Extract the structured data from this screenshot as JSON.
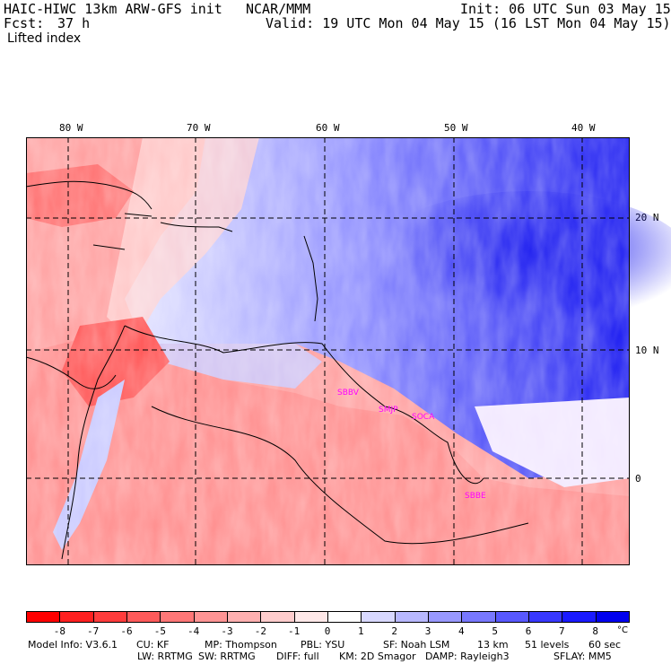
{
  "header": {
    "model": "HAIC-HIWC 13km ARW-GFS init",
    "org": "NCAR/MMM",
    "init": "Init: 06 UTC Sun 03 May 15",
    "fcst_label": "Fcst:",
    "fcst_value": "37 h",
    "valid": "Valid: 19 UTC Mon 04 May 15 (16 LST Mon 04 May 15)",
    "field": "Lifted index"
  },
  "map": {
    "lon_labels": [
      "80 W",
      "70 W",
      "60 W",
      "50 W",
      "40 W"
    ],
    "lat_labels": [
      "20 N",
      "10 N",
      "0"
    ],
    "stations": [
      "SBBV",
      "SMJP",
      "SOCA",
      "SBBE"
    ],
    "colors": {
      "unstable_strong": "#ff0000",
      "unstable_mid": "#ff7777",
      "unstable_weak": "#ffbbbb",
      "neutral": "#ffffff",
      "stable_weak": "#ccccff",
      "stable_mid": "#7777ff",
      "stable_strong": "#0000ee",
      "station_label": "#ff00ff"
    }
  },
  "colorbar": {
    "labels": [
      "-8",
      "-7",
      "-6",
      "-5",
      "-4",
      "-3",
      "-2",
      "-1",
      "0",
      "1",
      "2",
      "3",
      "4",
      "5",
      "6",
      "7",
      "8"
    ],
    "unit": "°C",
    "colors": [
      "#ff0000",
      "#ff2020",
      "#ff3c3c",
      "#ff5a5a",
      "#ff7777",
      "#ff9494",
      "#ffb0b0",
      "#ffcccc",
      "#ffe8e8",
      "#ffffff",
      "#d8d8ff",
      "#b8b8ff",
      "#9898ff",
      "#7878ff",
      "#5858ff",
      "#3838ff",
      "#1a1aff",
      "#0000ee"
    ]
  },
  "footer": {
    "line1": [
      "Model Info: V3.6.1",
      "CU: KF",
      "MP: Thompson",
      "PBL: YSU",
      "SF: Noah LSM",
      "13 km",
      "51 levels",
      "60 sec"
    ],
    "line2": [
      "LW: RRTMG",
      "SW: RRTMG",
      "DIFF: full",
      "KM: 2D Smagor",
      "DAMP: Rayleigh3",
      "SFLAY: MM5"
    ]
  }
}
